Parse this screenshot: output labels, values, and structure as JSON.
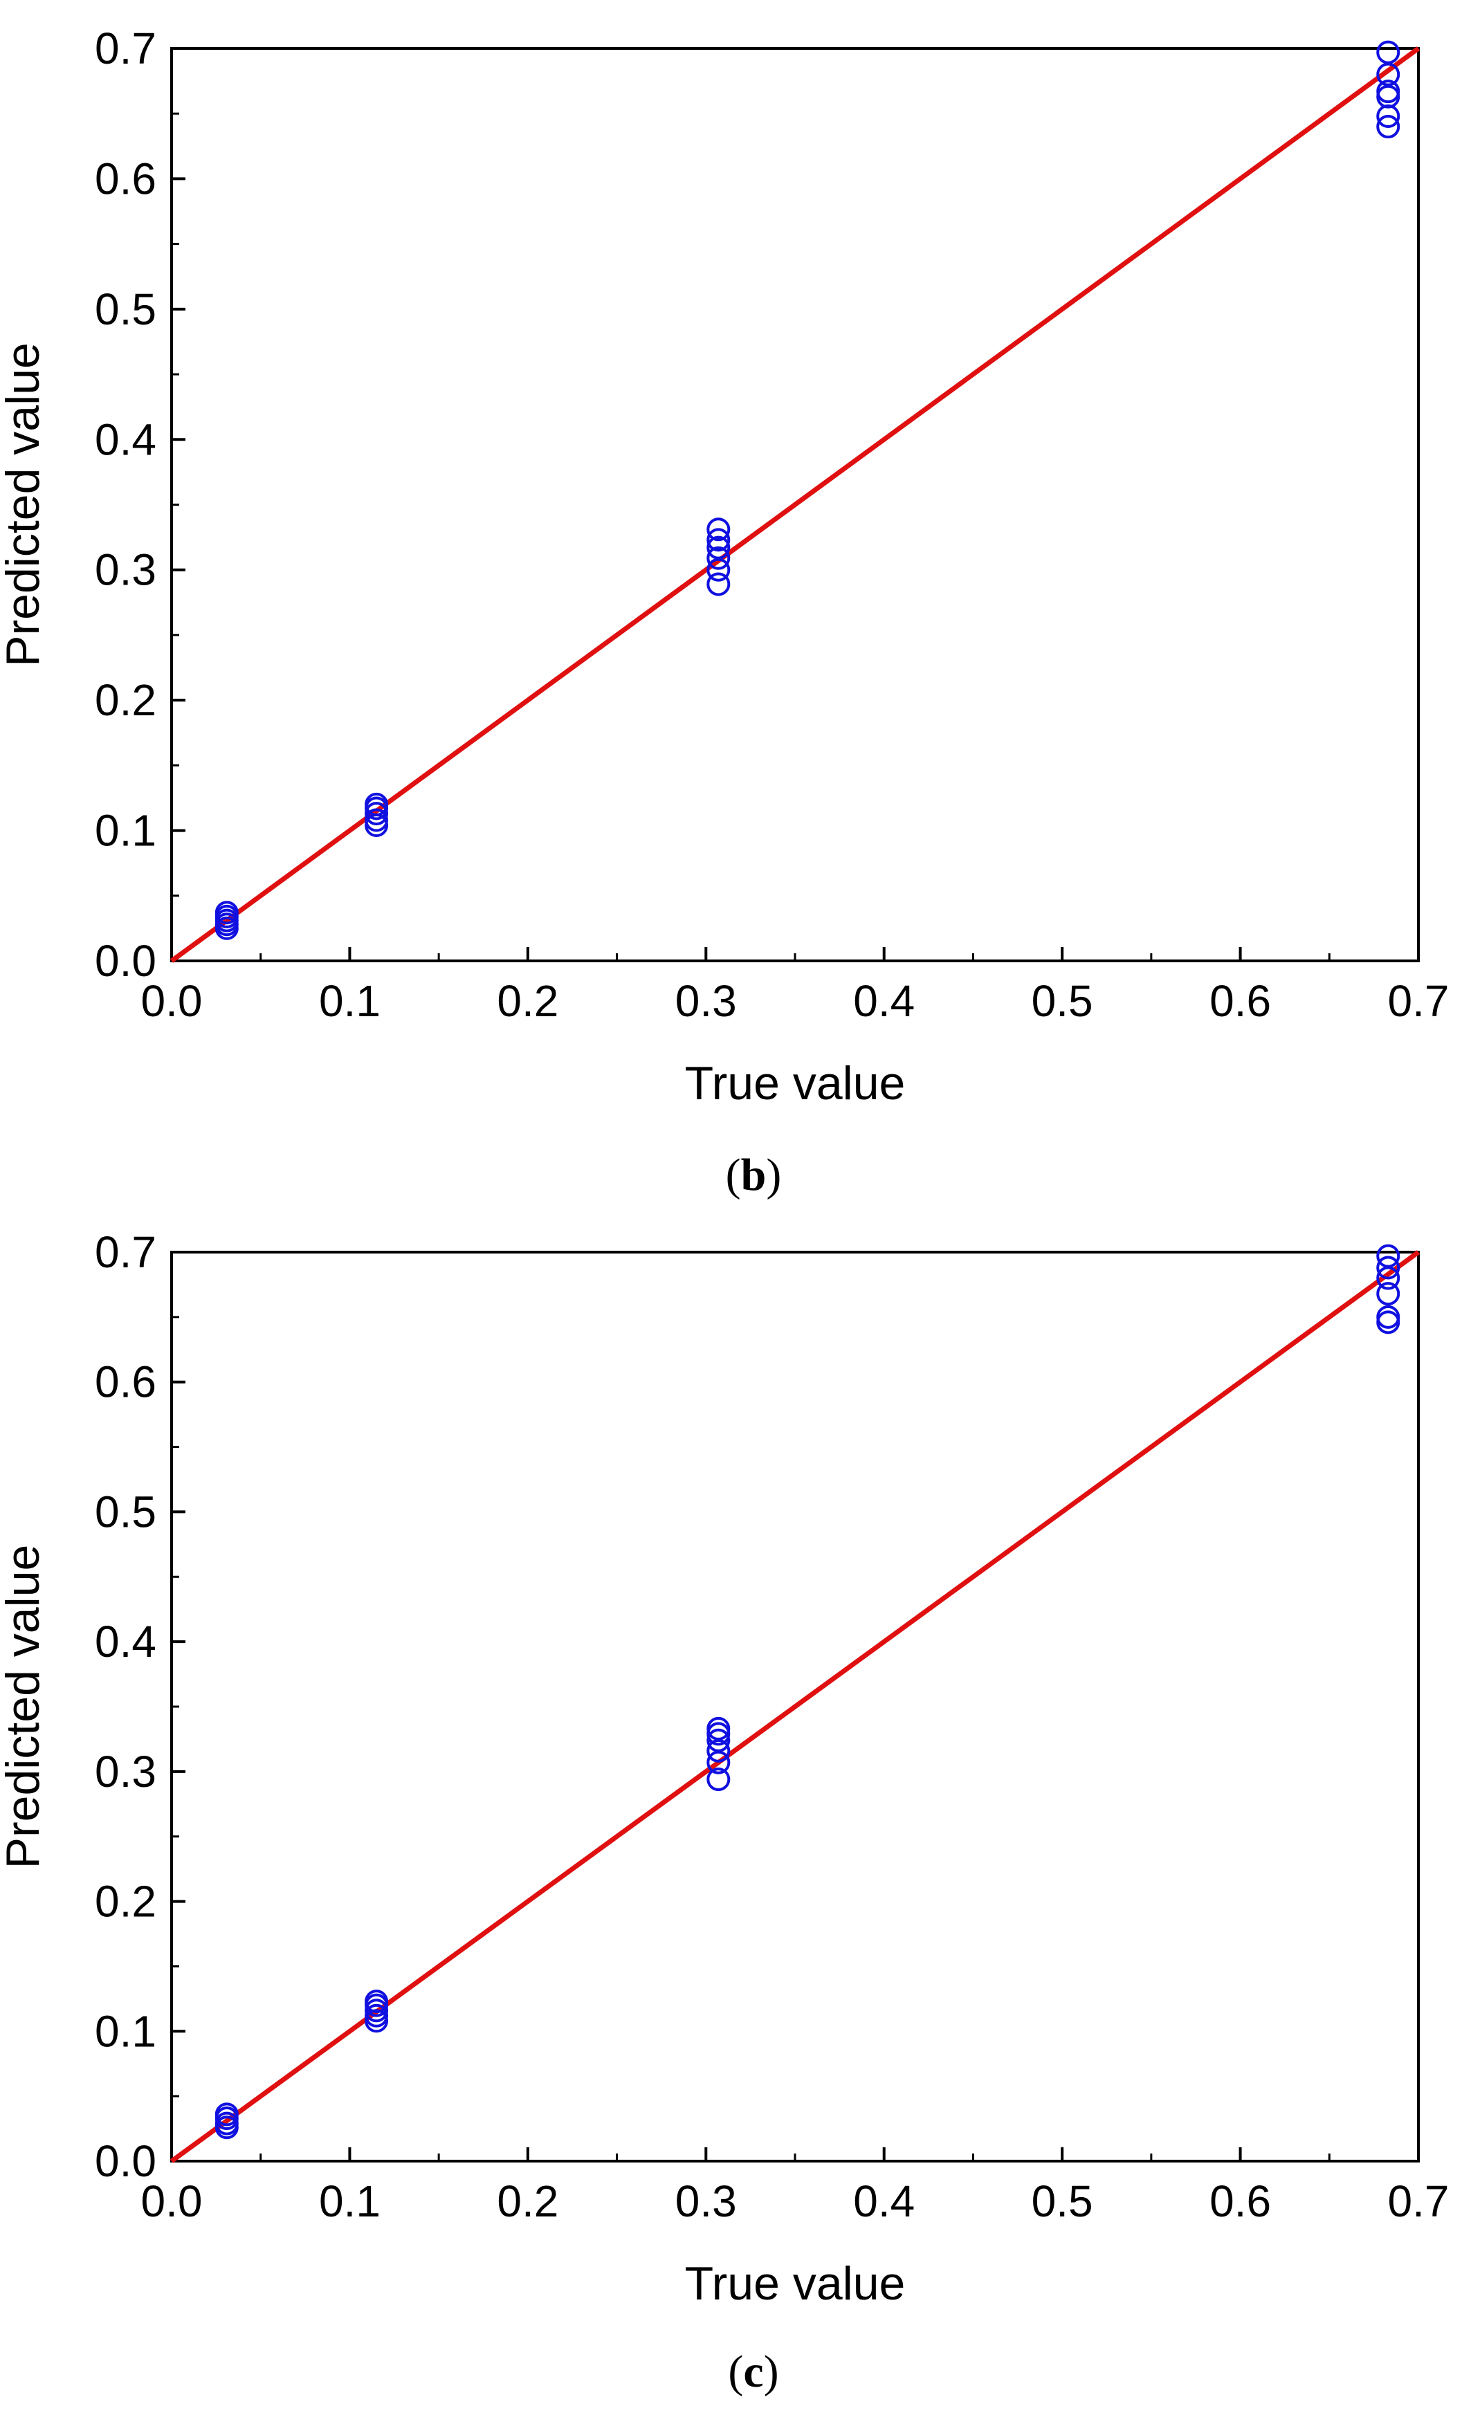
{
  "chart_data": [
    {
      "type": "scatter",
      "caption": {
        "open": "(",
        "letter": "b",
        "close": ")"
      },
      "xlabel": "True value",
      "ylabel": "Predicted value",
      "xlim": [
        0.0,
        0.7
      ],
      "ylim": [
        0.0,
        0.7
      ],
      "xticks": [
        "0.0",
        "0.1",
        "0.2",
        "0.3",
        "0.4",
        "0.5",
        "0.6",
        "0.7"
      ],
      "yticks": [
        "0.0",
        "0.1",
        "0.2",
        "0.3",
        "0.4",
        "0.5",
        "0.6",
        "0.7"
      ],
      "grid": false,
      "marker_color": "#1010e0",
      "line_color": "#e01010",
      "reference_line": {
        "x": [
          0.0,
          0.7
        ],
        "y": [
          0.0,
          0.7
        ]
      },
      "points": {
        "x": [
          0.031,
          0.031,
          0.031,
          0.031,
          0.031,
          0.115,
          0.115,
          0.115,
          0.115,
          0.115,
          0.307,
          0.307,
          0.307,
          0.307,
          0.307,
          0.307,
          0.683,
          0.683,
          0.683,
          0.683,
          0.683,
          0.683
        ],
        "y": [
          0.025,
          0.028,
          0.031,
          0.034,
          0.037,
          0.104,
          0.108,
          0.113,
          0.117,
          0.12,
          0.289,
          0.3,
          0.309,
          0.317,
          0.323,
          0.331,
          0.64,
          0.648,
          0.663,
          0.667,
          0.68,
          0.697
        ]
      }
    },
    {
      "type": "scatter",
      "caption": {
        "open": "(",
        "letter": "c",
        "close": ")"
      },
      "xlabel": "True value",
      "ylabel": "Predicted value",
      "xlim": [
        0.0,
        0.7
      ],
      "ylim": [
        0.0,
        0.7
      ],
      "xticks": [
        "0.0",
        "0.1",
        "0.2",
        "0.3",
        "0.4",
        "0.5",
        "0.6",
        "0.7"
      ],
      "yticks": [
        "0.0",
        "0.1",
        "0.2",
        "0.3",
        "0.4",
        "0.5",
        "0.6",
        "0.7"
      ],
      "grid": false,
      "marker_color": "#1010e0",
      "line_color": "#e01010",
      "reference_line": {
        "x": [
          0.0,
          0.7
        ],
        "y": [
          0.0,
          0.7
        ]
      },
      "points": {
        "x": [
          0.031,
          0.031,
          0.031,
          0.031,
          0.115,
          0.115,
          0.115,
          0.115,
          0.115,
          0.307,
          0.307,
          0.307,
          0.307,
          0.307,
          0.307,
          0.683,
          0.683,
          0.683,
          0.683,
          0.683,
          0.683
        ],
        "y": [
          0.026,
          0.029,
          0.033,
          0.036,
          0.108,
          0.112,
          0.116,
          0.12,
          0.123,
          0.294,
          0.307,
          0.316,
          0.324,
          0.329,
          0.333,
          0.646,
          0.65,
          0.668,
          0.68,
          0.688,
          0.697
        ]
      }
    }
  ]
}
